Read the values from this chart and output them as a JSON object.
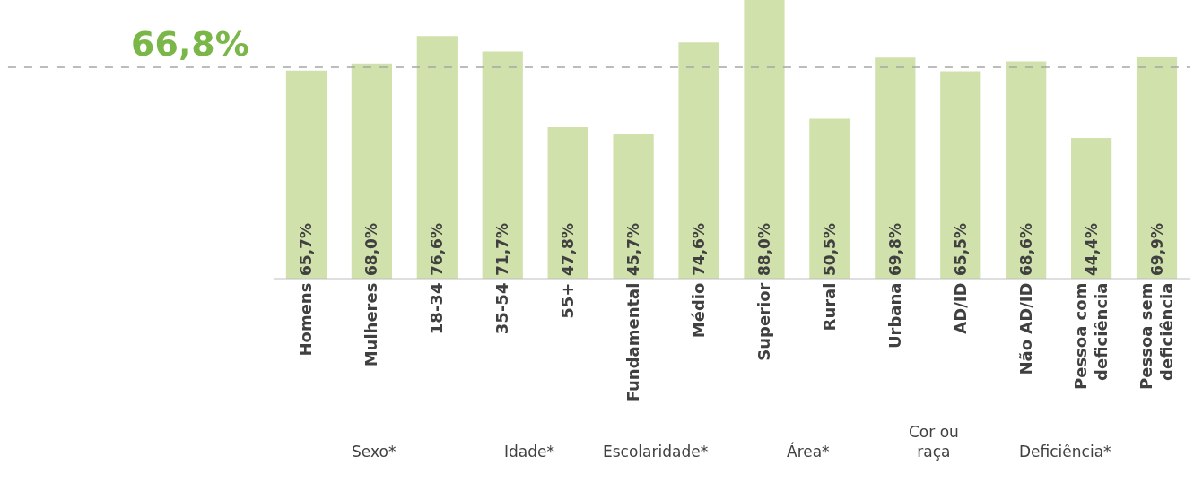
{
  "chart_data": {
    "type": "bar",
    "categories": [
      "Homens",
      "Mulheres",
      "18-34",
      "35-54",
      "55+",
      "Fundamental",
      "Médio",
      "Superior",
      "Rural",
      "Urbana",
      "AD/ID",
      "Não AD/ID",
      "Pessoa com\ndeficiência",
      "Pessoa sem\ndeficiência"
    ],
    "values": [
      65.7,
      68.0,
      76.6,
      71.7,
      47.8,
      45.7,
      74.6,
      88.0,
      50.5,
      69.8,
      65.5,
      68.6,
      44.4,
      69.9
    ],
    "value_labels": [
      "65,7%",
      "68,0%",
      "76,6%",
      "71,7%",
      "47,8%",
      "45,7%",
      "74,6%",
      "88,0%",
      "50,5%",
      "69,8%",
      "65,5%",
      "68,6%",
      "44,4%",
      "69,9%"
    ],
    "color": "#d0e1ab",
    "ylim": [
      0,
      88
    ],
    "tick_labels": "x",
    "legend": false,
    "ref_lines": [
      {
        "axis": "y",
        "value": 66.8,
        "label": "66,8%",
        "color": "#a6a6a6",
        "line_style": "dashed"
      }
    ],
    "annotations": [
      "Sexo*",
      "Idade*",
      "Escolaridade*",
      "Área*",
      "Cor ou\nraça",
      "Deficiência*"
    ]
  }
}
